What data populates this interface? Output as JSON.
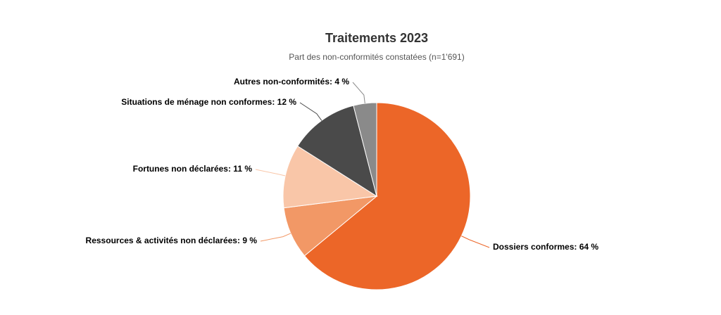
{
  "chart_data": {
    "type": "pie",
    "title": "Traitements 2023",
    "subtitle": "Part des non-conformités constatées (n=1'691)",
    "values": [
      64,
      9,
      11,
      12,
      4
    ],
    "value_labels": [
      "Dossiers conformes: 64 %",
      "Ressources & activités non déclarées: 9 %",
      "Fortunes non déclarées: 11 %",
      "Situations de ménage non conformes: 12 %",
      "Autres non-conformités: 4 %"
    ],
    "colors": [
      "#ec6628",
      "#f29866",
      "#f9c6a8",
      "#4a4a4a",
      "#8a8a8a"
    ]
  }
}
